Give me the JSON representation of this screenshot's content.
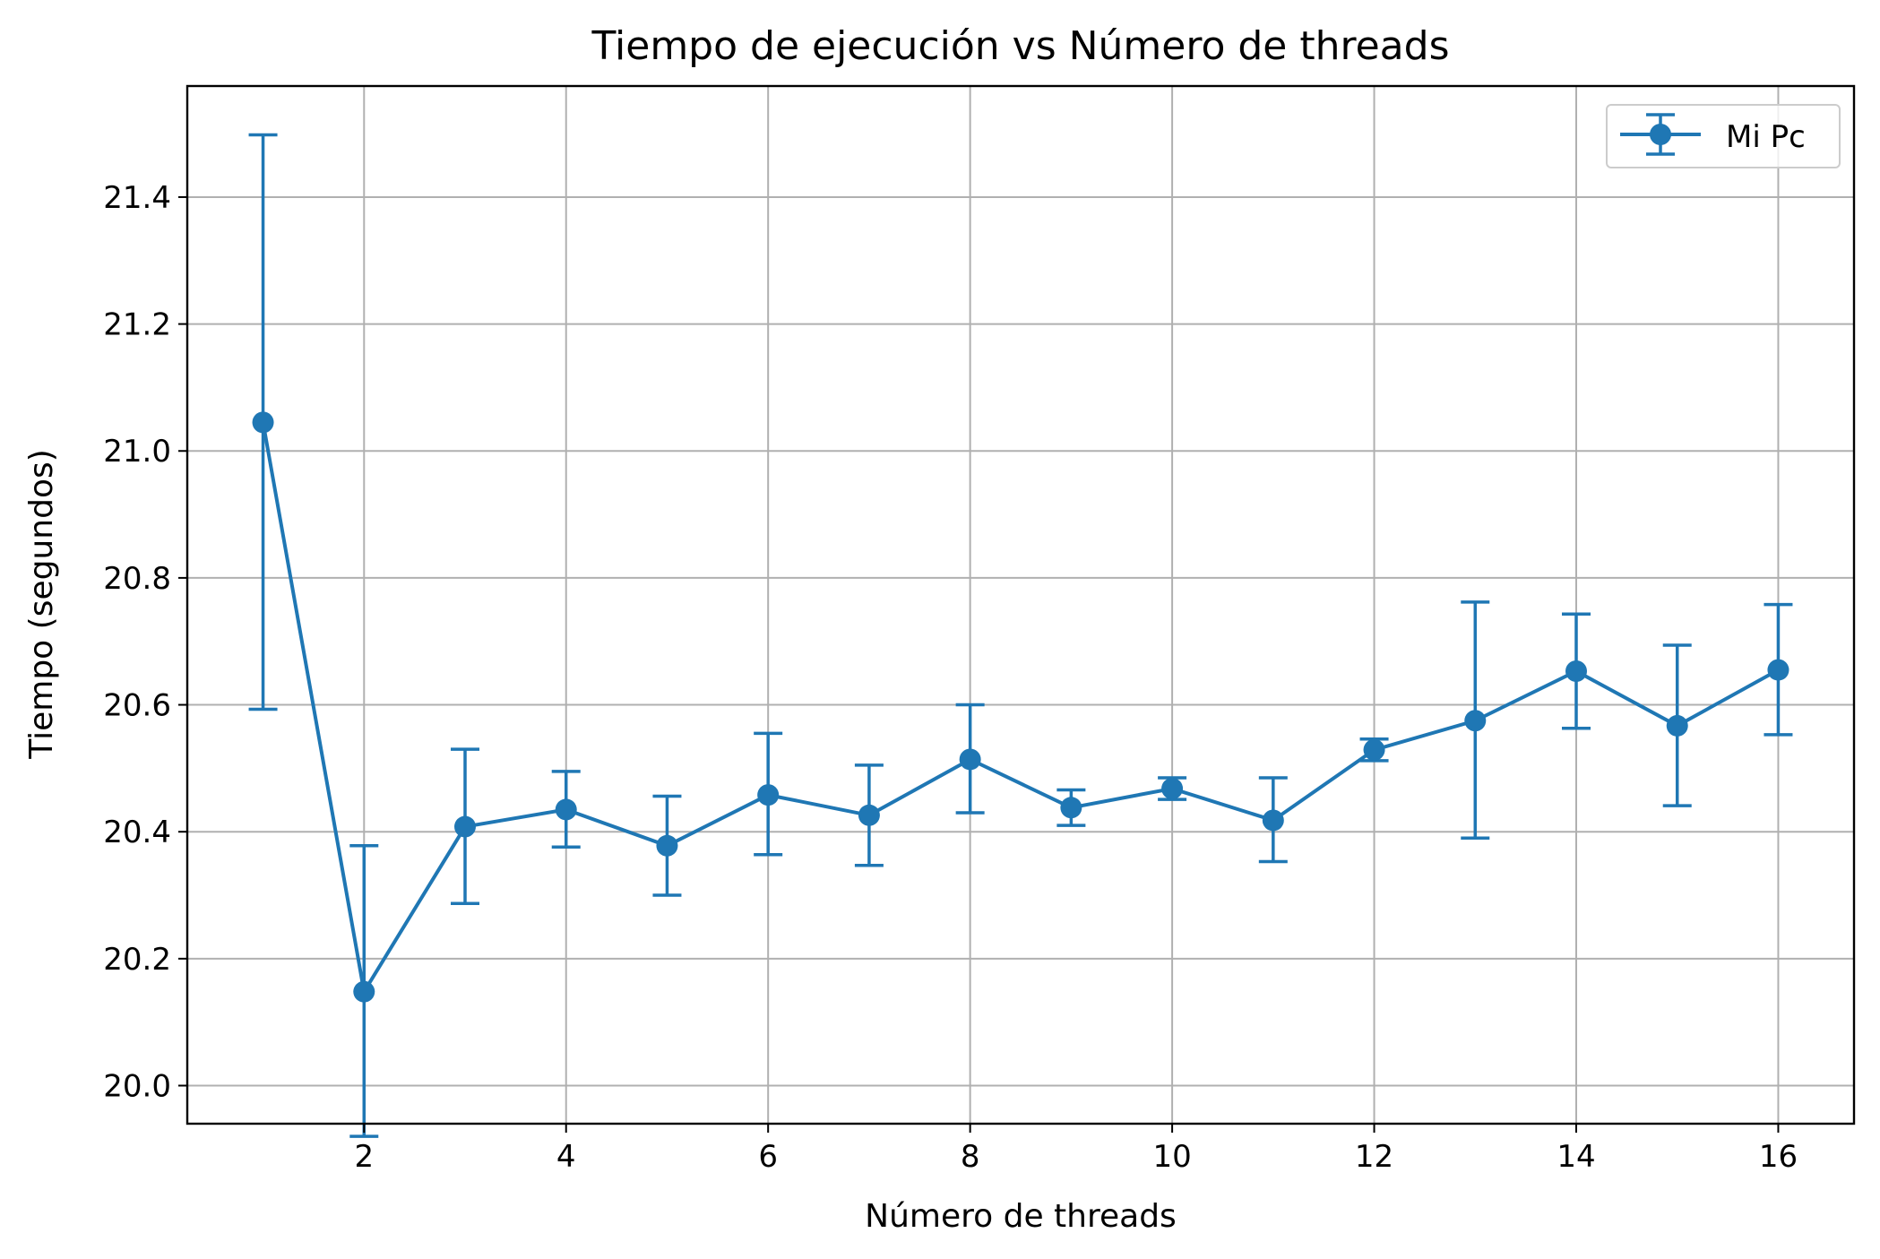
{
  "chart_data": {
    "type": "line",
    "title": "Tiempo de ejecución vs Número de threads",
    "xlabel": "Número de threads",
    "ylabel": "Tiempo (segundos)",
    "xlim": [
      0.25,
      16.75
    ],
    "ylim": [
      19.94,
      21.575
    ],
    "xticks": [
      2,
      4,
      6,
      8,
      10,
      12,
      14,
      16
    ],
    "xtick_labels": [
      "2",
      "4",
      "6",
      "8",
      "10",
      "12",
      "14",
      "16"
    ],
    "yticks": [
      20.0,
      20.2,
      20.4,
      20.6,
      20.8,
      21.0,
      21.2,
      21.4
    ],
    "ytick_labels": [
      "20.0",
      "20.2",
      "20.4",
      "20.6",
      "20.8",
      "21.0",
      "21.2",
      "21.4"
    ],
    "grid": true,
    "legend_position": "top-right",
    "series": [
      {
        "name": "Mi Pc",
        "color": "#1f77b4",
        "marker": "circle",
        "x": [
          1,
          2,
          3,
          4,
          5,
          6,
          7,
          8,
          9,
          10,
          11,
          12,
          13,
          14,
          15,
          16
        ],
        "y": [
          21.045,
          20.148,
          20.408,
          20.435,
          20.378,
          20.458,
          20.426,
          20.514,
          20.438,
          20.468,
          20.418,
          20.529,
          20.575,
          20.653,
          20.567,
          20.655
        ],
        "err_low": [
          20.593,
          19.92,
          20.287,
          20.376,
          20.3,
          20.364,
          20.347,
          20.43,
          20.41,
          20.451,
          20.353,
          20.512,
          20.39,
          20.563,
          20.441,
          20.553
        ],
        "err_high": [
          21.498,
          20.378,
          20.53,
          20.495,
          20.456,
          20.555,
          20.505,
          20.6,
          20.466,
          20.485,
          20.485,
          20.546,
          20.762,
          20.743,
          20.694,
          20.758
        ]
      }
    ]
  }
}
